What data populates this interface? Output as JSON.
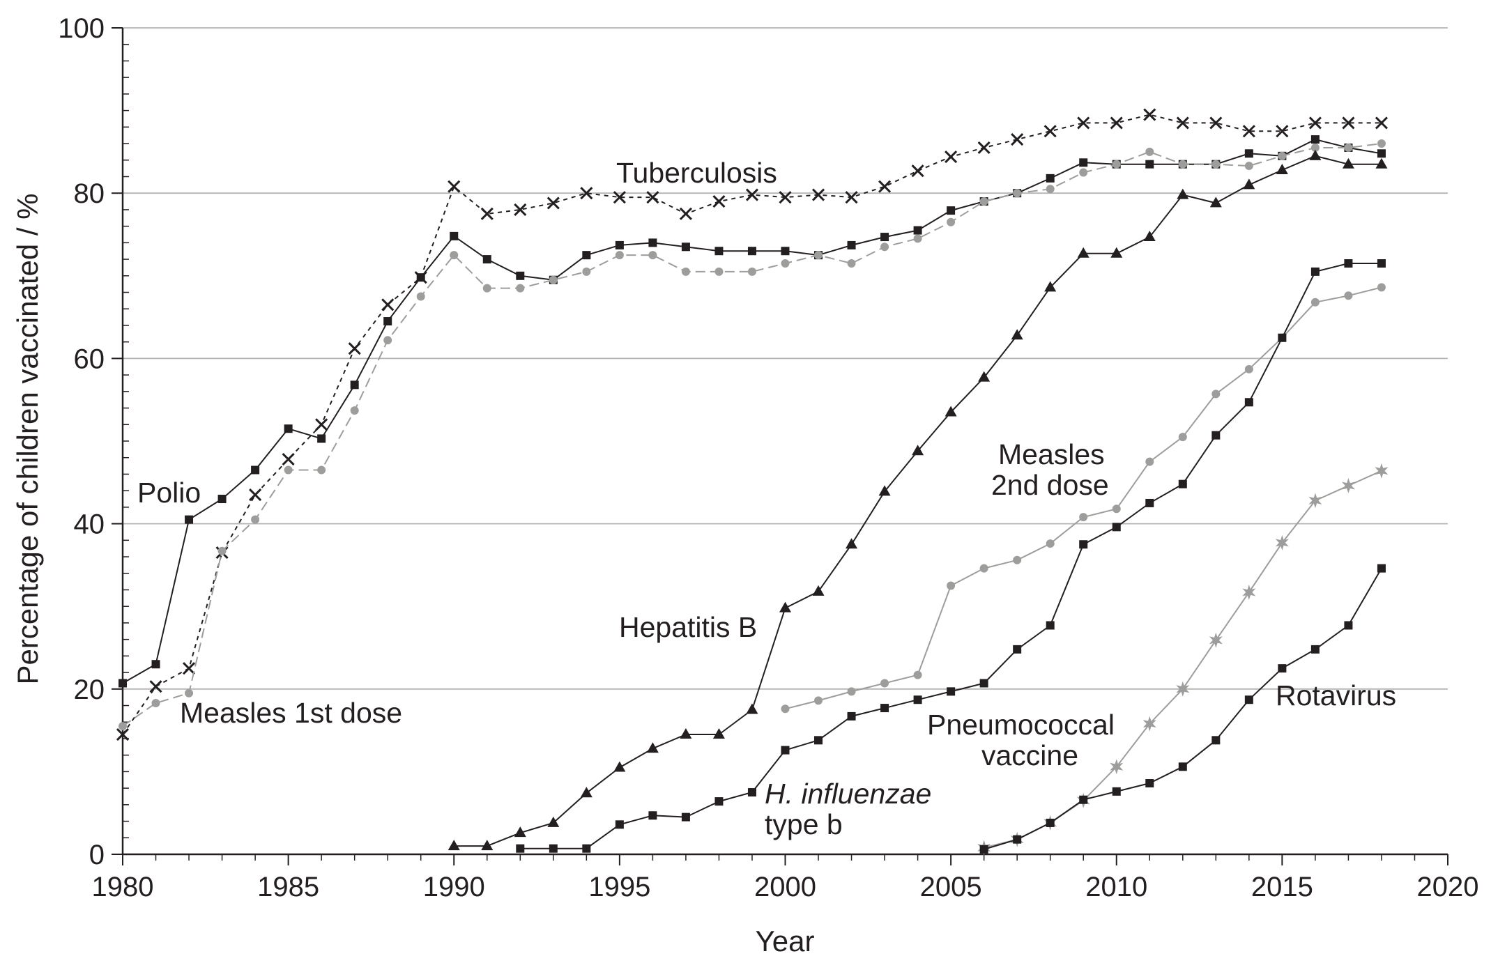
{
  "chart_data": {
    "type": "line",
    "title": "",
    "xlabel": "Year",
    "ylabel": "Percentage of children vaccinated / %",
    "xlim": [
      1980,
      2020
    ],
    "ylim": [
      0,
      100
    ],
    "xticks": [
      1980,
      1985,
      1990,
      1995,
      2000,
      2005,
      2010,
      2015,
      2020
    ],
    "yticks": [
      0,
      20,
      40,
      60,
      80,
      100
    ],
    "grid": "horizontal",
    "legend": "none (series labelled inline)",
    "colors": {
      "black": "#231f20",
      "gray": "#9d9d9c",
      "grid": "#b4b4b4"
    },
    "series": [
      {
        "name": "Tuberculosis",
        "marker": "x",
        "color": "#231f20",
        "dash": "short",
        "x": [
          1980,
          1981,
          1982,
          1983,
          1984,
          1985,
          1986,
          1987,
          1988,
          1989,
          1990,
          1991,
          1992,
          1993,
          1994,
          1995,
          1996,
          1997,
          1998,
          1999,
          2000,
          2001,
          2002,
          2003,
          2004,
          2005,
          2006,
          2007,
          2008,
          2009,
          2010,
          2011,
          2012,
          2013,
          2014,
          2015,
          2016,
          2017,
          2018
        ],
        "y": [
          14.5,
          20.3,
          22.5,
          36.5,
          43.5,
          47.8,
          52,
          61.2,
          66.5,
          69.8,
          80.8,
          77.5,
          78,
          78.8,
          80,
          79.5,
          79.5,
          77.5,
          79,
          79.8,
          79.5,
          79.8,
          79.5,
          80.8,
          82.7,
          84.4,
          85.5,
          86.5,
          87.5,
          88.5,
          88.5,
          89.5,
          88.5,
          88.5,
          87.5,
          87.5,
          88.5,
          88.5,
          88.5
        ]
      },
      {
        "name": "Polio",
        "marker": "square",
        "color": "#231f20",
        "dash": "solid",
        "x": [
          1980,
          1981,
          1982,
          1983,
          1984,
          1985,
          1986,
          1987,
          1988,
          1989,
          1990,
          1991,
          1992,
          1993,
          1994,
          1995,
          1996,
          1997,
          1998,
          1999,
          2000,
          2001,
          2002,
          2003,
          2004,
          2005,
          2006,
          2007,
          2008,
          2009,
          2010,
          2011,
          2012,
          2013,
          2014,
          2015,
          2016,
          2017,
          2018
        ],
        "y": [
          20.7,
          23,
          40.5,
          43,
          46.5,
          51.5,
          50.3,
          56.8,
          64.5,
          69.8,
          74.8,
          72,
          70,
          69.5,
          72.5,
          73.7,
          74,
          73.5,
          73,
          73,
          73,
          72.5,
          73.7,
          74.7,
          75.5,
          77.9,
          79,
          80,
          81.8,
          83.7,
          83.5,
          83.5,
          83.5,
          83.5,
          84.8,
          84.5,
          86.5,
          85.5,
          84.8
        ]
      },
      {
        "name": "Measles 1st dose",
        "marker": "circle",
        "color": "#9d9d9c",
        "dash": "long",
        "x": [
          1980,
          1981,
          1982,
          1983,
          1984,
          1985,
          1986,
          1987,
          1988,
          1989,
          1990,
          1991,
          1992,
          1993,
          1994,
          1995,
          1996,
          1997,
          1998,
          1999,
          2000,
          2001,
          2002,
          2003,
          2004,
          2005,
          2006,
          2007,
          2008,
          2009,
          2010,
          2011,
          2012,
          2013,
          2014,
          2015,
          2016,
          2017,
          2018
        ],
        "y": [
          15.5,
          18.3,
          19.5,
          36.7,
          40.5,
          46.5,
          46.5,
          53.7,
          62.2,
          67.5,
          72.5,
          68.5,
          68.5,
          69.5,
          70.5,
          72.5,
          72.5,
          70.5,
          70.5,
          70.5,
          71.5,
          72.5,
          71.5,
          73.5,
          74.5,
          76.5,
          79,
          80,
          80.5,
          82.5,
          83.5,
          85,
          83.5,
          83.5,
          83.3,
          84.5,
          85.5,
          85.5,
          86
        ]
      },
      {
        "name": "Hepatitis B",
        "marker": "triangle",
        "color": "#231f20",
        "dash": "solid",
        "x": [
          1990,
          1991,
          1992,
          1993,
          1994,
          1995,
          1996,
          1997,
          1998,
          1999,
          2000,
          2001,
          2002,
          2003,
          2004,
          2005,
          2006,
          2007,
          2008,
          2009,
          2010,
          2011,
          2012,
          2013,
          2014,
          2015,
          2016,
          2017,
          2018
        ],
        "y": [
          1,
          1,
          2.6,
          3.8,
          7.4,
          10.5,
          12.8,
          14.5,
          14.5,
          17.5,
          29.8,
          31.8,
          37.5,
          43.9,
          48.8,
          53.5,
          57.7,
          62.8,
          68.6,
          72.7,
          72.7,
          74.7,
          79.8,
          78.8,
          81,
          82.8,
          84.5,
          83.5,
          83.5
        ]
      },
      {
        "name": "Measles 2nd dose",
        "marker": "circle",
        "color": "#9d9d9c",
        "dash": "solid",
        "x": [
          2000,
          2001,
          2002,
          2003,
          2004,
          2005,
          2006,
          2007,
          2008,
          2009,
          2010,
          2011,
          2012,
          2013,
          2014,
          2015,
          2016,
          2017,
          2018
        ],
        "y": [
          17.6,
          18.6,
          19.7,
          20.7,
          21.7,
          32.5,
          34.6,
          35.6,
          37.6,
          40.8,
          41.8,
          47.5,
          50.5,
          55.7,
          58.7,
          62.5,
          66.8,
          67.6,
          68.6
        ]
      },
      {
        "name": "H. influenzae type b",
        "marker": "square",
        "color": "#231f20",
        "dash": "solid",
        "x": [
          1992,
          1993,
          1994,
          1995,
          1996,
          1997,
          1998,
          1999,
          2000,
          2001,
          2002,
          2003,
          2004,
          2005,
          2006,
          2007,
          2008,
          2009,
          2010,
          2011,
          2012,
          2013,
          2014,
          2015,
          2016,
          2017,
          2018
        ],
        "y": [
          0.7,
          0.7,
          0.7,
          3.6,
          4.7,
          4.5,
          6.4,
          7.5,
          12.6,
          13.8,
          16.7,
          17.7,
          18.7,
          19.7,
          20.7,
          24.8,
          27.7,
          37.5,
          39.6,
          42.5,
          44.8,
          50.7,
          54.7,
          62.5,
          70.5,
          71.5,
          71.5
        ]
      },
      {
        "name": "Pneumococcal vaccine",
        "marker": "star",
        "color": "#9d9d9c",
        "dash": "solid",
        "x": [
          2006,
          2007,
          2008,
          2009,
          2010,
          2011,
          2012,
          2013,
          2014,
          2015,
          2016,
          2017,
          2018
        ],
        "y": [
          0.8,
          1.8,
          3.8,
          6.5,
          10.6,
          15.8,
          20,
          25.9,
          31.7,
          37.7,
          42.8,
          44.6,
          46.4
        ]
      },
      {
        "name": "Rotavirus",
        "marker": "square",
        "color": "#231f20",
        "dash": "solid",
        "x": [
          2006,
          2007,
          2008,
          2009,
          2010,
          2011,
          2012,
          2013,
          2014,
          2015,
          2016,
          2017,
          2018
        ],
        "y": [
          0.6,
          1.8,
          3.8,
          6.6,
          7.6,
          8.6,
          10.6,
          13.8,
          18.7,
          22.5,
          24.8,
          27.7,
          34.6
        ]
      }
    ],
    "annotations": {
      "tuberculosis": "Tuberculosis",
      "polio": "Polio",
      "measles_first": "Measles 1st dose",
      "hepatitis_b": "Hepatitis B",
      "measles_second_line1": "Measles",
      "measles_second_line2": "2nd dose",
      "hib_line1": "H. influenzae",
      "hib_line2": "type b",
      "pneumococcal_line1": "Pneumococcal",
      "pneumococcal_line2": "vaccine",
      "rotavirus": "Rotavirus"
    }
  }
}
